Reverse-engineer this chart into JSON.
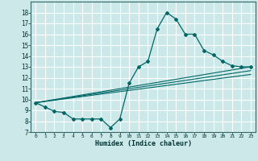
{
  "title": "",
  "xlabel": "Humidex (Indice chaleur)",
  "bg_color": "#cce8e8",
  "grid_color": "#ffffff",
  "line_color": "#006666",
  "xlim": [
    -0.5,
    23.5
  ],
  "ylim": [
    7,
    19
  ],
  "xticks": [
    0,
    1,
    2,
    3,
    4,
    5,
    6,
    7,
    8,
    9,
    10,
    11,
    12,
    13,
    14,
    15,
    16,
    17,
    18,
    19,
    20,
    21,
    22,
    23
  ],
  "yticks": [
    7,
    8,
    9,
    10,
    11,
    12,
    13,
    14,
    15,
    16,
    17,
    18
  ],
  "series1_x": [
    0,
    1,
    2,
    3,
    4,
    5,
    6,
    7,
    8,
    9,
    10,
    11,
    12,
    13,
    14,
    15,
    16,
    17,
    18,
    19,
    20,
    21,
    22,
    23
  ],
  "series1_y": [
    9.7,
    9.3,
    8.9,
    8.8,
    8.2,
    8.2,
    8.2,
    8.2,
    7.4,
    8.2,
    11.5,
    13.0,
    13.5,
    16.5,
    18.0,
    17.4,
    16.0,
    16.0,
    14.5,
    14.1,
    13.5,
    13.1,
    13.0,
    13.0
  ],
  "trend1_x": [
    0,
    23
  ],
  "trend1_y": [
    9.7,
    13.0
  ],
  "trend2_x": [
    0,
    23
  ],
  "trend2_y": [
    9.7,
    12.65
  ],
  "trend3_x": [
    0,
    23
  ],
  "trend3_y": [
    9.7,
    12.3
  ]
}
